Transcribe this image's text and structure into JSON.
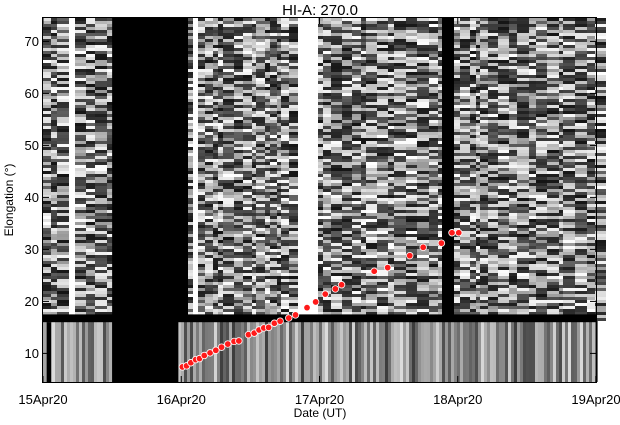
{
  "chart_data": {
    "type": "scatter",
    "title": "HI-A: 270.0",
    "xlabel": "Date (UT)",
    "ylabel": "Elongation (°)",
    "x_ticks": [
      "15Apr20",
      "16Apr20",
      "17Apr20",
      "18Apr20",
      "19Apr20"
    ],
    "x_range": [
      "2020-04-15T00:00",
      "2020-04-19T00:00"
    ],
    "y_ticks": [
      10,
      20,
      30,
      40,
      50,
      60,
      70
    ],
    "ylim": [
      4.5,
      74.5
    ],
    "background": "grayscale time-elongation map (J-map)",
    "series": [
      {
        "marker_color": "#ff1a1a",
        "points": [
          {
            "x": "2020-04-16T00:12",
            "y": 7.4
          },
          {
            "x": "2020-04-16T00:55",
            "y": 7.6
          },
          {
            "x": "2020-04-16T01:40",
            "y": 8.2
          },
          {
            "x": "2020-04-16T02:30",
            "y": 8.8
          },
          {
            "x": "2020-04-16T03:10",
            "y": 9.0
          },
          {
            "x": "2020-04-16T04:00",
            "y": 9.6
          },
          {
            "x": "2020-04-16T05:00",
            "y": 10.1
          },
          {
            "x": "2020-04-16T06:00",
            "y": 10.6
          },
          {
            "x": "2020-04-16T07:00",
            "y": 11.2
          },
          {
            "x": "2020-04-16T08:05",
            "y": 11.8
          },
          {
            "x": "2020-04-16T09:10",
            "y": 12.3
          },
          {
            "x": "2020-04-16T10:00",
            "y": 12.4
          },
          {
            "x": "2020-04-16T11:40",
            "y": 13.6
          },
          {
            "x": "2020-04-16T12:40",
            "y": 13.9
          },
          {
            "x": "2020-04-16T13:30",
            "y": 14.5
          },
          {
            "x": "2020-04-16T14:20",
            "y": 14.9
          },
          {
            "x": "2020-04-16T15:10",
            "y": 15.0
          },
          {
            "x": "2020-04-16T16:10",
            "y": 15.8
          },
          {
            "x": "2020-04-16T17:10",
            "y": 16.2
          },
          {
            "x": "2020-04-16T18:40",
            "y": 16.8
          },
          {
            "x": "2020-04-16T19:50",
            "y": 17.4
          },
          {
            "x": "2020-04-16T21:50",
            "y": 18.8
          },
          {
            "x": "2020-04-16T23:20",
            "y": 19.9
          },
          {
            "x": "2020-04-17T01:00",
            "y": 21.4
          },
          {
            "x": "2020-04-17T02:45",
            "y": 22.4
          },
          {
            "x": "2020-04-17T03:50",
            "y": 23.2
          },
          {
            "x": "2020-04-17T09:30",
            "y": 25.8
          },
          {
            "x": "2020-04-17T11:50",
            "y": 26.5
          },
          {
            "x": "2020-04-17T15:40",
            "y": 28.8
          },
          {
            "x": "2020-04-17T18:00",
            "y": 30.4
          },
          {
            "x": "2020-04-17T21:10",
            "y": 31.2
          },
          {
            "x": "2020-04-17T23:00",
            "y": 33.2
          },
          {
            "x": "2020-04-18T00:10",
            "y": 33.2
          }
        ]
      }
    ]
  }
}
